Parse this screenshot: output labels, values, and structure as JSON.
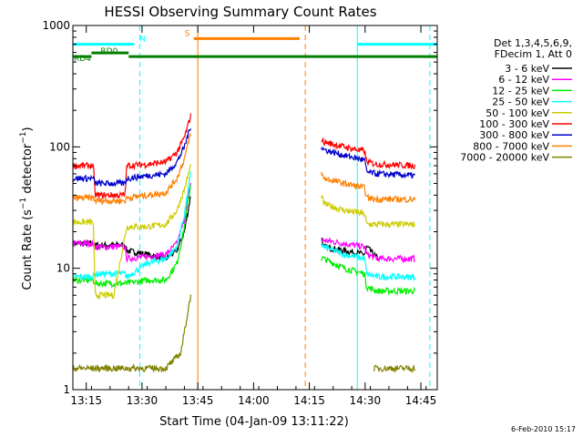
{
  "chart_data": {
    "type": "line",
    "title": "HESSI Observing Summary Count Rates",
    "xlabel": "Start Time (04-Jan-09 13:11:22)",
    "ylabel_parts": [
      "Count Rate (s",
      "−1",
      " detector",
      "−1",
      ")"
    ],
    "x_unit": "minutes after 13:11:22",
    "xlim": [
      0,
      98
    ],
    "ylim": [
      1,
      1000
    ],
    "y_scale": "log",
    "x_ticks": [
      {
        "label": "13:15",
        "x": 3.6
      },
      {
        "label": "13:30",
        "x": 18.6
      },
      {
        "label": "13:45",
        "x": 33.6
      },
      {
        "label": "14:00",
        "x": 48.6
      },
      {
        "label": "14:15",
        "x": 63.6
      },
      {
        "label": "14:30",
        "x": 78.6
      },
      {
        "label": "14:45",
        "x": 93.6
      }
    ],
    "y_ticks": [
      {
        "label": "1",
        "y": 1
      },
      {
        "label": "10",
        "y": 10
      },
      {
        "label": "100",
        "y": 100
      },
      {
        "label": "1000",
        "y": 1000
      }
    ],
    "legend_title_lines": [
      "Det 1,3,4,5,6,9,",
      "FDecim 1, Att 0"
    ],
    "legend": [
      {
        "label": "3 - 6 keV",
        "color": "#000000"
      },
      {
        "label": "6 - 12 keV",
        "color": "#ff00ff"
      },
      {
        "label": "12 - 25 keV",
        "color": "#00ee00"
      },
      {
        "label": "25 - 50 keV",
        "color": "#00ffff"
      },
      {
        "label": "50 - 100 keV",
        "color": "#cccc00"
      },
      {
        "label": "100 - 300 keV",
        "color": "#ff0000"
      },
      {
        "label": "300 - 800 keV",
        "color": "#0000cc"
      },
      {
        "label": "800 - 7000 keV",
        "color": "#ff7f00"
      },
      {
        "label": "7000 - 20000 keV",
        "color": "#808000"
      }
    ],
    "series": [
      {
        "label": "3 - 6 keV",
        "color": "#000000",
        "segments": [
          [
            [
              0,
              16
            ],
            [
              5.5,
              16
            ],
            [
              6,
              15.5
            ],
            [
              14,
              15.5
            ],
            [
              14.5,
              14
            ],
            [
              20,
              13
            ],
            [
              25,
              12
            ],
            [
              28,
              14
            ],
            [
              30,
              20
            ],
            [
              31.7,
              40
            ]
          ],
          [
            [
              66.8,
              18
            ],
            [
              67.5,
              15
            ],
            [
              73,
              14
            ],
            [
              78.5,
              13
            ],
            [
              79,
              15
            ],
            [
              82,
              12
            ]
          ]
        ]
      },
      {
        "label": "6 - 12 keV",
        "color": "#ff00ff",
        "segments": [
          [
            [
              0,
              16
            ],
            [
              5.5,
              16
            ],
            [
              6,
              15
            ],
            [
              14,
              15
            ],
            [
              14.5,
              12
            ],
            [
              20,
              12.5
            ],
            [
              25,
              13
            ],
            [
              28,
              16
            ],
            [
              30,
              25
            ],
            [
              31.7,
              50
            ]
          ],
          [
            [
              66.8,
              17
            ],
            [
              67.5,
              17
            ],
            [
              73,
              16
            ],
            [
              78.5,
              15
            ],
            [
              79,
              13
            ],
            [
              82,
              12
            ],
            [
              92,
              12
            ]
          ]
        ]
      },
      {
        "label": "12 - 25 keV",
        "color": "#00ee00",
        "segments": [
          [
            [
              0,
              8
            ],
            [
              5.5,
              8
            ],
            [
              6,
              7.5
            ],
            [
              14,
              7.5
            ],
            [
              14.5,
              7.5
            ],
            [
              20,
              8
            ],
            [
              25,
              8
            ],
            [
              28,
              11
            ],
            [
              30,
              22
            ],
            [
              31.7,
              50
            ]
          ],
          [
            [
              66.8,
              12
            ],
            [
              67.5,
              12
            ],
            [
              73,
              10
            ],
            [
              78.5,
              9
            ],
            [
              79,
              7
            ],
            [
              82,
              6.5
            ],
            [
              92,
              6.5
            ]
          ]
        ]
      },
      {
        "label": "25 - 50 keV",
        "color": "#00ffff",
        "segments": [
          [
            [
              0,
              8.5
            ],
            [
              5.5,
              8.5
            ],
            [
              6,
              9
            ],
            [
              14,
              9
            ],
            [
              14.5,
              8.5
            ],
            [
              20,
              11
            ],
            [
              25,
              12
            ],
            [
              28,
              15
            ],
            [
              30,
              28
            ],
            [
              31.7,
              60
            ]
          ],
          [
            [
              66.8,
              16
            ],
            [
              67.5,
              15
            ],
            [
              73,
              13
            ],
            [
              78.5,
              12
            ],
            [
              79,
              9
            ],
            [
              82,
              8.5
            ],
            [
              92,
              8.5
            ]
          ]
        ]
      },
      {
        "label": "50 - 100 keV",
        "color": "#cccc00",
        "segments": [
          [
            [
              0,
              24
            ],
            [
              5.5,
              24
            ],
            [
              6,
              6
            ],
            [
              11,
              6
            ],
            [
              14.5,
              22
            ],
            [
              20,
              22
            ],
            [
              25,
              23
            ],
            [
              28,
              30
            ],
            [
              30,
              45
            ],
            [
              31.7,
              70
            ]
          ],
          [
            [
              66.8,
              40
            ],
            [
              67.5,
              34
            ],
            [
              73,
              30
            ],
            [
              78.5,
              28
            ],
            [
              79,
              23
            ],
            [
              82,
              23
            ],
            [
              92,
              23
            ]
          ]
        ]
      },
      {
        "label": "100 - 300 keV",
        "color": "#ff0000",
        "segments": [
          [
            [
              0,
              70
            ],
            [
              5.5,
              70
            ],
            [
              6,
              40
            ],
            [
              14,
              40
            ],
            [
              14.5,
              70
            ],
            [
              20,
              72
            ],
            [
              25,
              75
            ],
            [
              28,
              90
            ],
            [
              30,
              120
            ],
            [
              31.7,
              180
            ]
          ],
          [
            [
              66.8,
              115
            ],
            [
              67.5,
              110
            ],
            [
              73,
              100
            ],
            [
              78.5,
              92
            ],
            [
              79,
              75
            ],
            [
              82,
              72
            ],
            [
              92,
              70
            ]
          ]
        ]
      },
      {
        "label": "300 - 800 keV",
        "color": "#0000cc",
        "segments": [
          [
            [
              0,
              55
            ],
            [
              5.5,
              55
            ],
            [
              6,
              50
            ],
            [
              14,
              50
            ],
            [
              14.5,
              55
            ],
            [
              20,
              58
            ],
            [
              25,
              60
            ],
            [
              28,
              75
            ],
            [
              30,
              100
            ],
            [
              31.7,
              150
            ]
          ],
          [
            [
              66.8,
              100
            ],
            [
              67.5,
              95
            ],
            [
              73,
              85
            ],
            [
              78.5,
              78
            ],
            [
              79,
              62
            ],
            [
              82,
              60
            ],
            [
              92,
              58
            ]
          ]
        ]
      },
      {
        "label": "800 - 7000 keV",
        "color": "#ff7f00",
        "segments": [
          [
            [
              0,
              38
            ],
            [
              5.5,
              38
            ],
            [
              6,
              36
            ],
            [
              14,
              36
            ],
            [
              14.5,
              38
            ],
            [
              20,
              40
            ],
            [
              25,
              42
            ],
            [
              28,
              55
            ],
            [
              30,
              80
            ],
            [
              31.7,
              130
            ]
          ],
          [
            [
              66.8,
              60
            ],
            [
              67.5,
              55
            ],
            [
              73,
              50
            ],
            [
              78.5,
              46
            ],
            [
              79,
              38
            ],
            [
              82,
              37
            ],
            [
              92,
              37
            ]
          ]
        ]
      },
      {
        "label": "7000 - 20000 keV",
        "color": "#808000",
        "segments": [
          [
            [
              0,
              1.5
            ],
            [
              5.5,
              1.5
            ],
            [
              14,
              1.5
            ],
            [
              20,
              1.5
            ],
            [
              25,
              1.5
            ],
            [
              29,
              2
            ],
            [
              30,
              3
            ],
            [
              31.7,
              6
            ]
          ],
          [
            [
              81,
              1.5
            ],
            [
              85,
              1.5
            ],
            [
              92,
              1.5
            ]
          ]
        ]
      }
    ],
    "flag_bars": [
      {
        "label": "N",
        "color": "#00ffff",
        "y": 700,
        "segments": [
          [
            0,
            16.5
          ],
          [
            76.5,
            98
          ]
        ]
      },
      {
        "label": "S",
        "color": "#ff7f00",
        "y": 780,
        "segments": [
          [
            32.5,
            61
          ]
        ]
      },
      {
        "label": "RD0",
        "color": "#008000",
        "y": 555,
        "segments": [
          [
            0,
            5
          ],
          [
            15,
            98
          ]
        ]
      },
      {
        "label": "RD4",
        "color": "#008000",
        "y": 595,
        "segments": [
          [
            5,
            15
          ]
        ]
      }
    ],
    "vlines": [
      {
        "x": 18,
        "color": "#00ffff",
        "style": "dashed"
      },
      {
        "x": 33.6,
        "color": "#ff7f00",
        "style": "solid"
      },
      {
        "x": 62.5,
        "color": "#ff7f00",
        "style": "dashed"
      },
      {
        "x": 76.5,
        "color": "#00ffff",
        "style": "solid"
      },
      {
        "x": 96,
        "color": "#00ffff",
        "style": "dashed"
      }
    ],
    "footer": "6-Feb-2010 15:17"
  }
}
